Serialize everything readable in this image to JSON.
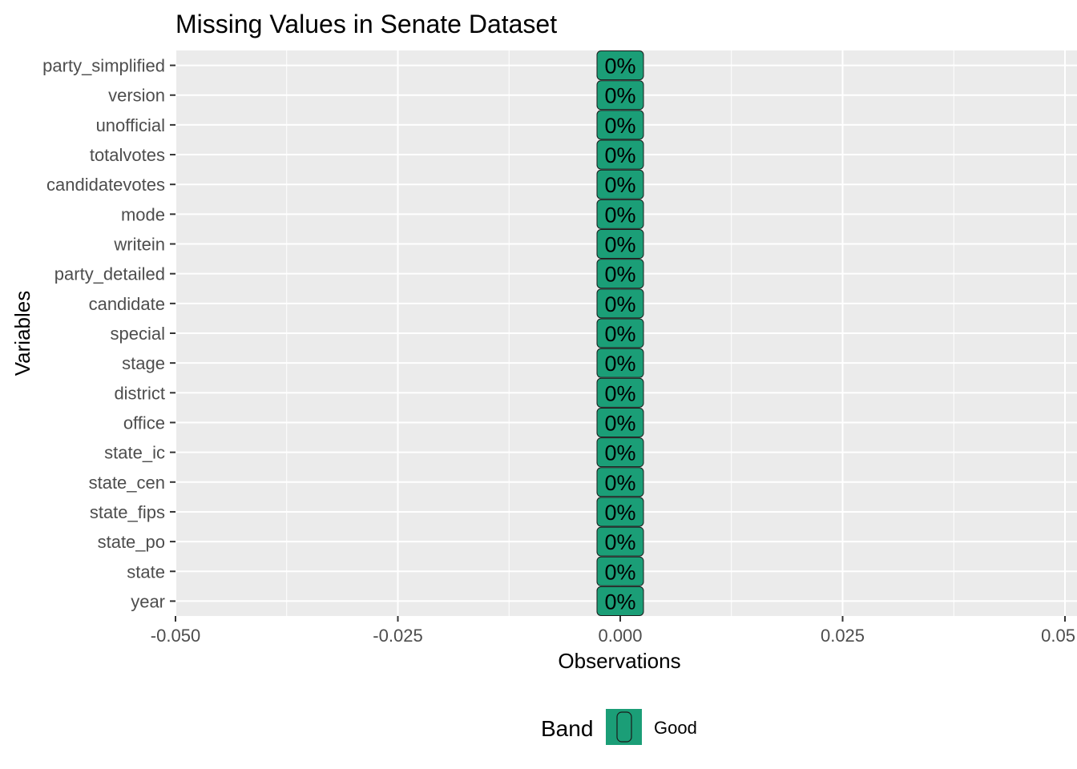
{
  "chart_data": {
    "type": "bar",
    "orientation": "horizontal",
    "title": "Missing Values in Senate Dataset",
    "xlabel": "Observations",
    "ylabel": "Variables",
    "categories": [
      "party_simplified",
      "version",
      "unofficial",
      "totalvotes",
      "candidatevotes",
      "mode",
      "writein",
      "party_detailed",
      "candidate",
      "special",
      "stage",
      "district",
      "office",
      "state_ic",
      "state_cen",
      "state_fips",
      "state_po",
      "state",
      "year"
    ],
    "values": [
      0,
      0,
      0,
      0,
      0,
      0,
      0,
      0,
      0,
      0,
      0,
      0,
      0,
      0,
      0,
      0,
      0,
      0,
      0
    ],
    "bar_labels": [
      "0%",
      "0%",
      "0%",
      "0%",
      "0%",
      "0%",
      "0%",
      "0%",
      "0%",
      "0%",
      "0%",
      "0%",
      "0%",
      "0%",
      "0%",
      "0%",
      "0%",
      "0%",
      "0%"
    ],
    "xlim": [
      -0.05,
      0.05
    ],
    "xticks": [
      -0.05,
      -0.025,
      0,
      0.025,
      0.05
    ],
    "xtick_labels": [
      "-0.050",
      "-0.025",
      "0.000",
      "0.025",
      "0.05"
    ],
    "grid": true,
    "legend": {
      "title": "Band",
      "position": "bottom",
      "entries": [
        {
          "label": "Good",
          "color": "#1b9e77"
        }
      ]
    },
    "colors": {
      "bar_fill": "#1b9e77",
      "panel_background": "#ebebeb",
      "grid": "#ffffff"
    }
  }
}
